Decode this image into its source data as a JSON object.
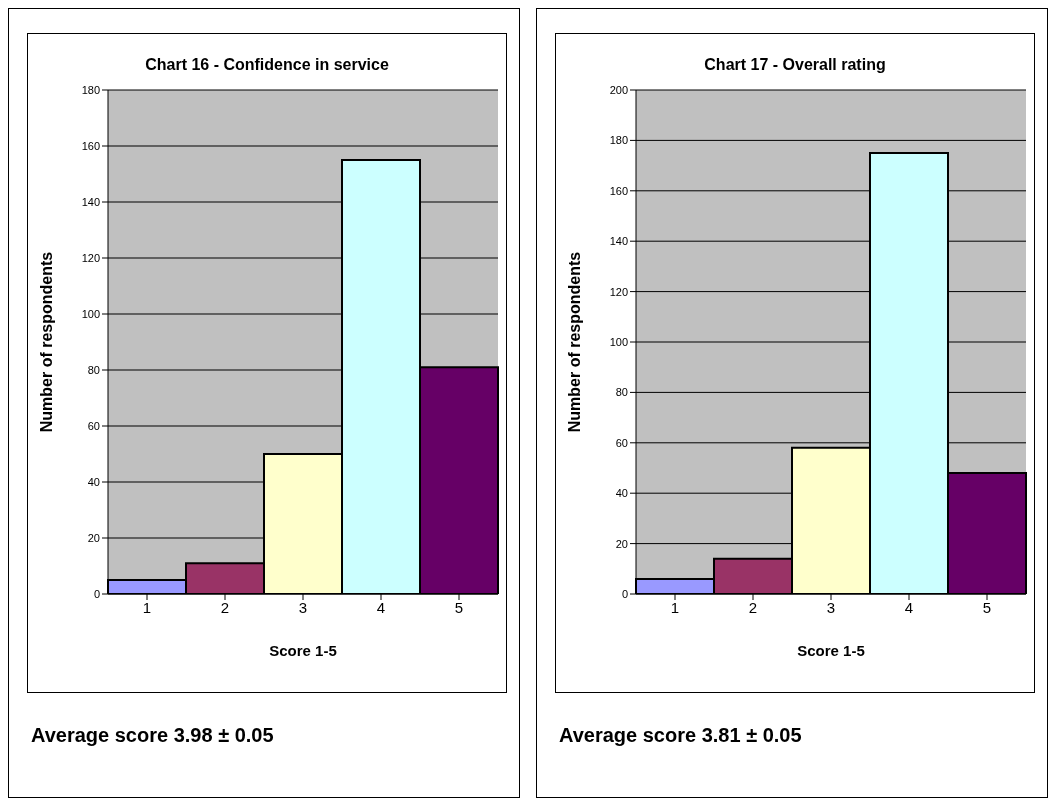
{
  "chart_data": [
    {
      "type": "bar",
      "title": "Chart 16 - Confidence in service",
      "xlabel": "Score 1-5",
      "ylabel": "Number of respondents",
      "categories": [
        "1",
        "2",
        "3",
        "4",
        "5"
      ],
      "values": [
        5,
        11,
        50,
        155,
        81
      ],
      "colors": [
        "#9999ff",
        "#993366",
        "#ffffcc",
        "#ccffff",
        "#660066"
      ],
      "ylim": [
        0,
        180
      ],
      "yticks": [
        0,
        20,
        40,
        60,
        80,
        100,
        120,
        140,
        160,
        180
      ],
      "grid": "y",
      "annotations": [
        "Average score 3.98 ± 0.05"
      ]
    },
    {
      "type": "bar",
      "title": "Chart 17 - Overall rating",
      "xlabel": "Score 1-5",
      "ylabel": "Number of respondents",
      "categories": [
        "1",
        "2",
        "3",
        "4",
        "5"
      ],
      "values": [
        6,
        14,
        58,
        175,
        48
      ],
      "colors": [
        "#9999ff",
        "#993366",
        "#ffffcc",
        "#ccffff",
        "#660066"
      ],
      "ylim": [
        0,
        200
      ],
      "yticks": [
        0,
        20,
        40,
        60,
        80,
        100,
        120,
        140,
        160,
        180,
        200
      ],
      "grid": "y",
      "annotations": [
        "Average score 3.81 ± 0.05"
      ]
    }
  ]
}
